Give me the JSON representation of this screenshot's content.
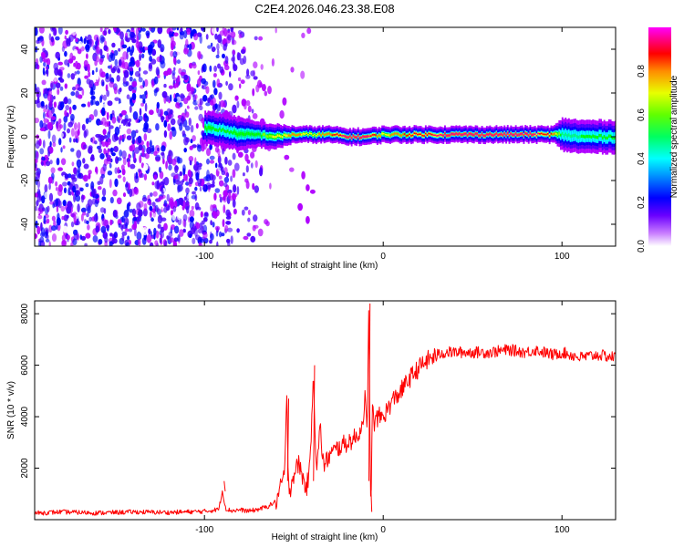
{
  "page": {
    "title": "C2E4.2026.046.23.38.E08"
  },
  "colors": {
    "signal": "#ff0000",
    "noise": "#7a24e8",
    "background": "#ffffff"
  },
  "chart_data": [
    {
      "type": "heatmap",
      "title": "C2E4.2026.046.23.38.E08",
      "xlabel": "Height of straight line (km)",
      "ylabel": "Frequency (Hz)",
      "xlim": [
        -195,
        130
      ],
      "ylim": [
        -50,
        50
      ],
      "x_ticks": [
        -100,
        0,
        100
      ],
      "y_ticks": [
        -40,
        -20,
        0,
        20,
        40
      ],
      "colorbar": {
        "label": "Normalized spectral amplitude",
        "range": [
          0,
          1
        ],
        "ticks": [
          "0.0",
          "0.2",
          "0.4",
          "0.6",
          "0.8"
        ],
        "colormap": [
          "#ffffff",
          "#b000ff",
          "#4b00ff",
          "#0000ff",
          "#00a0ff",
          "#00ffff",
          "#00ff80",
          "#00ff00",
          "#80ff00",
          "#ffff00",
          "#ff8000",
          "#ff0000",
          "#ff0080",
          "#ff00ff"
        ]
      },
      "noise_region_x": [
        -195,
        -68
      ],
      "signal_band": [
        {
          "x": -100,
          "f": 4,
          "width": 4,
          "amp": 0.55
        },
        {
          "x": -90,
          "f": 3,
          "width": 4,
          "amp": 0.5
        },
        {
          "x": -80,
          "f": 1,
          "width": 4,
          "amp": 0.55
        },
        {
          "x": -70,
          "f": 1,
          "width": 3,
          "amp": 0.55
        },
        {
          "x": -60,
          "f": 0,
          "width": 3,
          "amp": 0.7
        },
        {
          "x": -50,
          "f": 1,
          "width": 2,
          "amp": 0.75
        },
        {
          "x": -40,
          "f": 1,
          "width": 2,
          "amp": 0.7
        },
        {
          "x": -30,
          "f": 1,
          "width": 2,
          "amp": 0.8
        },
        {
          "x": -20,
          "f": 0,
          "width": 2,
          "amp": 0.95
        },
        {
          "x": -10,
          "f": 0,
          "width": 2,
          "amp": 0.95
        },
        {
          "x": 0,
          "f": 1,
          "width": 2,
          "amp": 0.7
        },
        {
          "x": 10,
          "f": 1,
          "width": 2,
          "amp": 0.8
        },
        {
          "x": 20,
          "f": 1,
          "width": 2,
          "amp": 0.85
        },
        {
          "x": 40,
          "f": 1,
          "width": 2,
          "amp": 0.95
        },
        {
          "x": 60,
          "f": 1,
          "width": 2,
          "amp": 0.95
        },
        {
          "x": 80,
          "f": 1,
          "width": 2,
          "amp": 0.95
        },
        {
          "x": 95,
          "f": 1,
          "width": 2,
          "amp": 0.8
        },
        {
          "x": 100,
          "f": 1,
          "width": 4,
          "amp": 0.45
        },
        {
          "x": 110,
          "f": 0,
          "width": 4,
          "amp": 0.5
        },
        {
          "x": 120,
          "f": 0,
          "width": 4,
          "amp": 0.5
        },
        {
          "x": 130,
          "f": 0,
          "width": 4,
          "amp": 0.5
        }
      ]
    },
    {
      "type": "line",
      "xlabel": "Height of straight line (km)",
      "ylabel": "SNR (10 * v/v)",
      "xlim": [
        -195,
        130
      ],
      "ylim": [
        0,
        8500
      ],
      "x_ticks": [
        -100,
        0,
        100
      ],
      "y_ticks": [
        2000,
        4000,
        6000,
        8000
      ],
      "series": [
        {
          "name": "SNR",
          "color": "#ff0000",
          "x": [
            -195,
            -180,
            -160,
            -140,
            -120,
            -100,
            -92,
            -90,
            -88,
            -85,
            -80,
            -75,
            -70,
            -65,
            -60,
            -57,
            -55,
            -54,
            -53,
            -52,
            -50,
            -47,
            -45,
            -43,
            -41,
            -40,
            -39,
            -38,
            -37,
            -36,
            -35,
            -34,
            -33,
            -30,
            -25,
            -20,
            -15,
            -12,
            -10,
            -9,
            -8,
            -7,
            -6,
            -5,
            -3,
            0,
            5,
            10,
            15,
            20,
            25,
            30,
            35,
            40,
            50,
            60,
            70,
            80,
            85,
            90,
            95,
            100,
            105,
            110,
            120,
            130
          ],
          "y": [
            250,
            300,
            260,
            300,
            280,
            320,
            400,
            1100,
            420,
            350,
            380,
            330,
            400,
            500,
            700,
            1300,
            2000,
            4700,
            1500,
            1200,
            1800,
            2200,
            1600,
            1200,
            2000,
            4000,
            6000,
            3000,
            2000,
            3000,
            3600,
            2400,
            2100,
            2500,
            2800,
            3000,
            3200,
            3600,
            4800,
            3000,
            8400,
            300,
            4300,
            3700,
            4000,
            4000,
            4600,
            5000,
            5500,
            5900,
            6200,
            6400,
            6500,
            6500,
            6500,
            6500,
            6600,
            6500,
            6600,
            6500,
            6400,
            6500,
            6400,
            6300,
            6400,
            6300
          ]
        }
      ]
    }
  ]
}
